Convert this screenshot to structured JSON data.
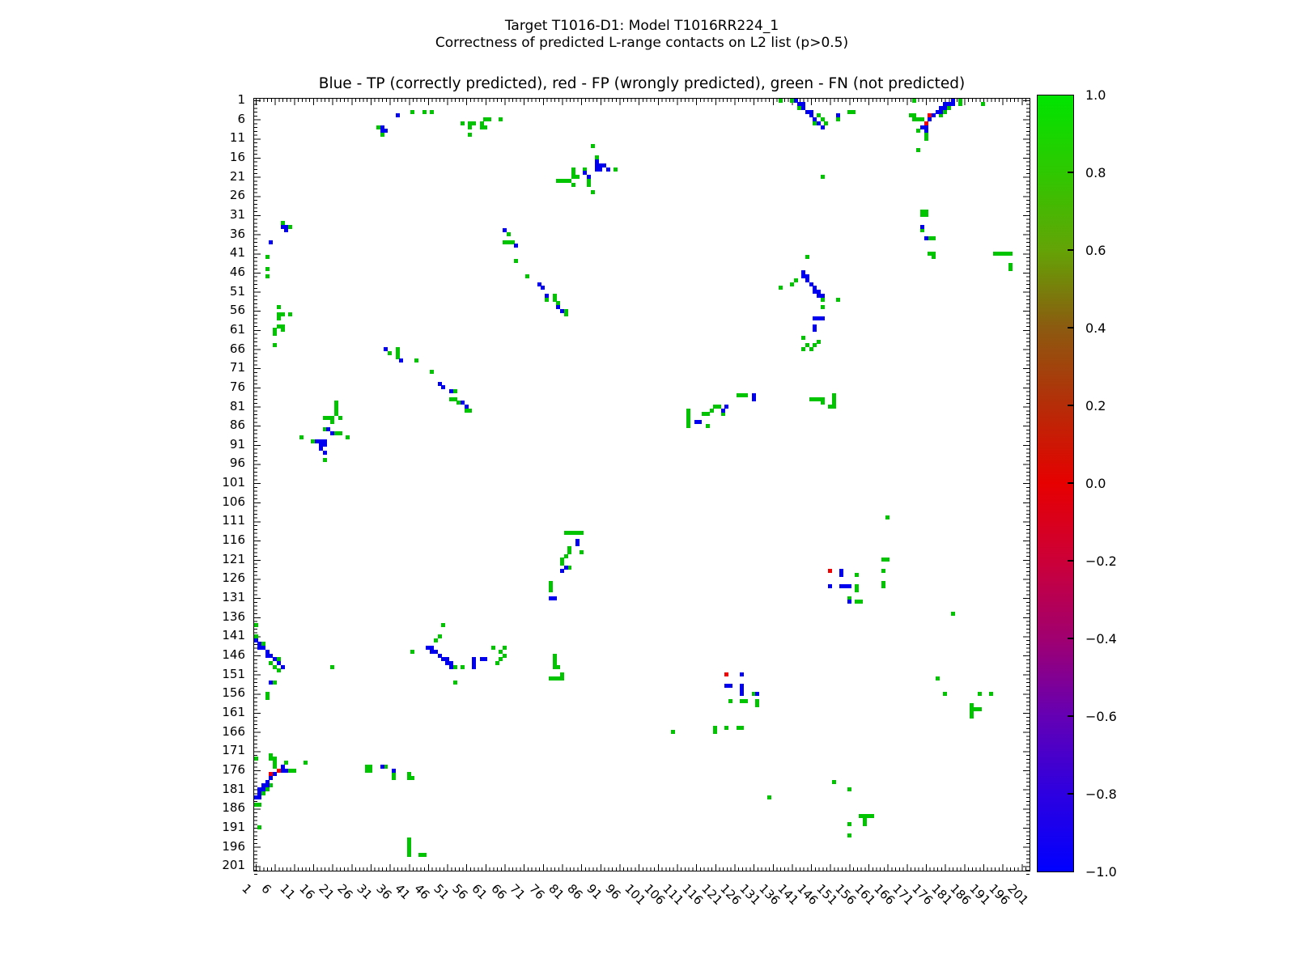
{
  "figure": {
    "suptitle_line1": "Target T1016-D1: Model T1016RR224_1",
    "suptitle_line2": "Correctness of predicted L-range contacts on L2 list (p>0.5)",
    "axes_title": "Blue - TP (correctly predicted), red - FP (wrongly predicted), green - FN (not predicted)",
    "background_color": "#ffffff"
  },
  "chart_data": {
    "type": "heatmap",
    "title": "Blue - TP (correctly predicted), red - FP (wrongly predicted), green - FN (not predicted)",
    "symmetric": true,
    "x_tick_labels": [
      1,
      6,
      11,
      16,
      21,
      26,
      31,
      36,
      41,
      46,
      51,
      56,
      61,
      66,
      71,
      76,
      81,
      86,
      91,
      96,
      101,
      106,
      111,
      116,
      121,
      126,
      131,
      136,
      141,
      146,
      151,
      156,
      161,
      166,
      171,
      176,
      181,
      186,
      191,
      196,
      201
    ],
    "y_tick_labels": [
      1,
      6,
      11,
      16,
      21,
      26,
      31,
      36,
      41,
      46,
      51,
      56,
      61,
      66,
      71,
      76,
      81,
      86,
      91,
      96,
      101,
      106,
      111,
      116,
      121,
      126,
      131,
      136,
      141,
      146,
      151,
      156,
      161,
      166,
      171,
      176,
      181,
      186,
      191,
      196,
      201
    ],
    "axis_range": [
      1,
      203
    ],
    "grid": false,
    "classes": {
      "tp": {
        "label": "TP (correctly predicted)",
        "color": "#0000ee"
      },
      "fp": {
        "label": "FP (wrongly predicted)",
        "color": "#f00000"
      },
      "fn": {
        "label": "FN (not predicted)",
        "color": "#00c400"
      }
    },
    "cells": {
      "tp": [
        [
          34,
          8
        ],
        [
          34,
          9
        ],
        [
          35,
          9
        ],
        [
          38,
          5
        ],
        [
          66,
          35
        ],
        [
          69,
          39
        ],
        [
          75,
          49
        ],
        [
          76,
          50
        ],
        [
          77,
          52
        ],
        [
          80,
          55
        ],
        [
          81,
          56
        ],
        [
          87,
          20
        ],
        [
          88,
          21
        ],
        [
          90,
          17
        ],
        [
          90,
          18
        ],
        [
          91,
          18
        ],
        [
          92,
          18
        ],
        [
          90,
          19
        ],
        [
          91,
          19
        ],
        [
          93,
          19
        ],
        [
          116,
          85
        ],
        [
          117,
          85
        ],
        [
          123,
          82
        ],
        [
          124,
          81
        ],
        [
          131,
          78
        ],
        [
          131,
          79
        ],
        [
          142,
          1
        ],
        [
          143,
          2
        ],
        [
          144,
          2
        ],
        [
          144,
          3
        ],
        [
          145,
          4
        ],
        [
          146,
          4
        ],
        [
          146,
          5
        ],
        [
          147,
          6
        ],
        [
          148,
          7
        ],
        [
          149,
          8
        ],
        [
          153,
          5
        ],
        [
          144,
          46
        ],
        [
          144,
          47
        ],
        [
          145,
          47
        ],
        [
          145,
          48
        ],
        [
          146,
          49
        ],
        [
          147,
          50
        ],
        [
          147,
          51
        ],
        [
          148,
          51
        ],
        [
          148,
          52
        ],
        [
          149,
          52
        ],
        [
          147,
          58
        ],
        [
          148,
          58
        ],
        [
          149,
          58
        ],
        [
          147,
          60
        ],
        [
          147,
          61
        ],
        [
          154,
          124
        ],
        [
          154,
          125
        ],
        [
          151,
          128
        ],
        [
          154,
          128
        ],
        [
          155,
          128
        ],
        [
          156,
          128
        ],
        [
          156,
          132
        ],
        [
          175,
          34
        ],
        [
          176,
          37
        ],
        [
          183,
          1
        ],
        [
          183,
          2
        ],
        [
          182,
          2
        ],
        [
          181,
          2
        ],
        [
          181,
          3
        ],
        [
          180,
          3
        ],
        [
          180,
          4
        ],
        [
          179,
          4
        ],
        [
          178,
          5
        ],
        [
          177,
          6
        ],
        [
          176,
          8
        ],
        [
          176,
          9
        ],
        [
          175,
          8
        ]
      ],
      "fp": [
        [
          177,
          5
        ],
        [
          176,
          7
        ],
        [
          151,
          124
        ]
      ],
      "fn": [
        [
          42,
          4
        ],
        [
          45,
          4
        ],
        [
          47,
          4
        ],
        [
          33,
          8
        ],
        [
          34,
          10
        ],
        [
          55,
          7
        ],
        [
          57,
          7
        ],
        [
          58,
          7
        ],
        [
          57,
          8
        ],
        [
          57,
          10
        ],
        [
          60,
          7
        ],
        [
          60,
          8
        ],
        [
          61,
          8
        ],
        [
          61,
          6
        ],
        [
          62,
          6
        ],
        [
          65,
          6
        ],
        [
          67,
          36
        ],
        [
          66,
          38
        ],
        [
          67,
          38
        ],
        [
          68,
          38
        ],
        [
          69,
          43
        ],
        [
          72,
          47
        ],
        [
          79,
          52
        ],
        [
          79,
          53
        ],
        [
          77,
          53
        ],
        [
          80,
          54
        ],
        [
          82,
          56
        ],
        [
          82,
          57
        ],
        [
          89,
          13
        ],
        [
          90,
          16
        ],
        [
          84,
          19
        ],
        [
          87,
          19
        ],
        [
          95,
          19
        ],
        [
          84,
          20
        ],
        [
          84,
          21
        ],
        [
          85,
          21
        ],
        [
          80,
          22
        ],
        [
          81,
          22
        ],
        [
          82,
          22
        ],
        [
          83,
          22
        ],
        [
          88,
          22
        ],
        [
          88,
          23
        ],
        [
          84,
          23
        ],
        [
          89,
          25
        ],
        [
          114,
          82
        ],
        [
          114,
          83
        ],
        [
          114,
          84
        ],
        [
          114,
          85
        ],
        [
          114,
          86
        ],
        [
          118,
          83
        ],
        [
          119,
          83
        ],
        [
          120,
          82
        ],
        [
          121,
          81
        ],
        [
          122,
          81
        ],
        [
          119,
          86
        ],
        [
          123,
          83
        ],
        [
          127,
          78
        ],
        [
          128,
          78
        ],
        [
          129,
          78
        ],
        [
          146,
          79
        ],
        [
          147,
          79
        ],
        [
          148,
          79
        ],
        [
          149,
          79
        ],
        [
          149,
          80
        ],
        [
          152,
          78
        ],
        [
          152,
          79
        ],
        [
          152,
          80
        ],
        [
          152,
          81
        ],
        [
          151,
          81
        ],
        [
          141,
          1
        ],
        [
          143,
          3
        ],
        [
          148,
          5
        ],
        [
          149,
          6
        ],
        [
          150,
          7
        ],
        [
          147,
          7
        ],
        [
          138,
          1
        ],
        [
          153,
          6
        ],
        [
          156,
          4
        ],
        [
          157,
          4
        ],
        [
          145,
          42
        ],
        [
          138,
          50
        ],
        [
          141,
          49
        ],
        [
          142,
          48
        ],
        [
          149,
          53
        ],
        [
          153,
          53
        ],
        [
          149,
          55
        ],
        [
          144,
          63
        ],
        [
          145,
          65
        ],
        [
          147,
          65
        ],
        [
          148,
          64
        ],
        [
          149,
          21
        ],
        [
          144,
          66
        ],
        [
          146,
          66
        ],
        [
          165,
          121
        ],
        [
          166,
          121
        ],
        [
          165,
          124
        ],
        [
          165,
          127
        ],
        [
          165,
          128
        ],
        [
          166,
          110
        ],
        [
          156,
          131
        ],
        [
          158,
          125
        ],
        [
          158,
          128
        ],
        [
          158,
          129
        ],
        [
          158,
          132
        ],
        [
          159,
          132
        ],
        [
          172,
          5
        ],
        [
          173,
          5
        ],
        [
          173,
          6
        ],
        [
          174,
          6
        ],
        [
          175,
          6
        ],
        [
          174,
          9
        ],
        [
          174,
          14
        ],
        [
          176,
          10
        ],
        [
          176,
          11
        ],
        [
          181,
          4
        ],
        [
          182,
          3
        ],
        [
          185,
          1
        ],
        [
          185,
          2
        ],
        [
          180,
          5
        ],
        [
          191,
          2
        ],
        [
          173,
          1
        ],
        [
          175,
          30
        ],
        [
          176,
          30
        ],
        [
          175,
          31
        ],
        [
          176,
          31
        ],
        [
          175,
          35
        ],
        [
          177,
          37
        ],
        [
          178,
          37
        ],
        [
          177,
          41
        ],
        [
          178,
          41
        ],
        [
          178,
          42
        ],
        [
          179,
          152
        ],
        [
          181,
          156
        ],
        [
          190,
          156
        ],
        [
          193,
          156
        ],
        [
          183,
          135
        ],
        [
          188,
          159
        ],
        [
          188,
          160
        ],
        [
          188,
          161
        ],
        [
          188,
          162
        ],
        [
          189,
          160
        ],
        [
          190,
          160
        ],
        [
          194,
          41
        ],
        [
          195,
          41
        ],
        [
          196,
          41
        ],
        [
          197,
          41
        ],
        [
          198,
          41
        ],
        [
          198,
          44
        ],
        [
          198,
          45
        ]
      ]
    },
    "colorbar": {
      "min": -1.0,
      "max": 1.0,
      "tick_labels": [
        "1.0",
        "0.8",
        "0.6",
        "0.4",
        "0.2",
        "0.0",
        "−0.2",
        "−0.4",
        "−0.6",
        "−0.8",
        "−1.0"
      ],
      "gradient_stops": [
        [
          0.0,
          "#00e400"
        ],
        [
          0.1,
          "#2fc800"
        ],
        [
          0.2,
          "#64a306"
        ],
        [
          0.3,
          "#8c5a10"
        ],
        [
          0.4,
          "#b52d08"
        ],
        [
          0.5,
          "#e60000"
        ],
        [
          0.6,
          "#cc0038"
        ],
        [
          0.7,
          "#a00070"
        ],
        [
          0.8,
          "#6400b4"
        ],
        [
          0.9,
          "#2d00e0"
        ],
        [
          1.0,
          "#0000ff"
        ]
      ]
    }
  }
}
